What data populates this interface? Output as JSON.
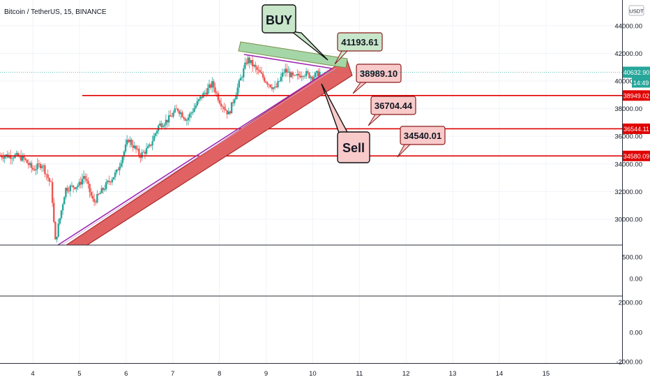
{
  "header": {
    "title": "Bitcoin / TetherUS, 15, BINANCE"
  },
  "currency_badge": "USDT",
  "colors": {
    "up": "#26a69a",
    "down": "#ef5350",
    "grid": "#f0f3fa",
    "support": "#e00000",
    "channel": "#c0393b",
    "purple": "#9c27b0",
    "buy_fill": "#c8e6c9",
    "sell_fill": "#f8caca",
    "price_tag": "#26a69a"
  },
  "chart_data": [
    {
      "type": "candlestick",
      "title": "Bitcoin / TetherUS, 15, BINANCE",
      "x_ticks": [
        "4",
        "5",
        "6",
        "7",
        "8",
        "9",
        "10",
        "11",
        "12",
        "13",
        "14",
        "15"
      ],
      "y_ticks": [
        "30000.00",
        "32000.00",
        "34000.00",
        "36000.00",
        "38000.00",
        "40000.00",
        "42000.00",
        "44000.00"
      ],
      "ylim": [
        28000,
        45600
      ],
      "price_path": [
        [
          3.6,
          34600
        ],
        [
          3.8,
          34400
        ],
        [
          4.0,
          33600
        ],
        [
          4.2,
          34000
        ],
        [
          4.4,
          32400
        ],
        [
          4.48,
          28300
        ],
        [
          4.7,
          32200
        ],
        [
          5.0,
          32500
        ],
        [
          5.1,
          33200
        ],
        [
          5.3,
          31200
        ],
        [
          5.6,
          32600
        ],
        [
          5.8,
          33400
        ],
        [
          6.05,
          35800
        ],
        [
          6.3,
          34600
        ],
        [
          6.5,
          35200
        ],
        [
          6.7,
          36800
        ],
        [
          6.9,
          37200
        ],
        [
          7.1,
          38000
        ],
        [
          7.3,
          37200
        ],
        [
          7.6,
          38800
        ],
        [
          7.85,
          39800
        ],
        [
          8.0,
          38600
        ],
        [
          8.2,
          37600
        ],
        [
          8.4,
          39600
        ],
        [
          8.6,
          41600
        ],
        [
          8.8,
          40800
        ],
        [
          9.0,
          40000
        ],
        [
          9.2,
          39400
        ],
        [
          9.4,
          40800
        ],
        [
          9.6,
          40200
        ],
        [
          9.8,
          40600
        ],
        [
          10.0,
          40300
        ],
        [
          10.15,
          40630
        ]
      ],
      "horizontal_levels": [
        {
          "price": 38949.02,
          "label": "38949.02"
        },
        {
          "price": 36544.11,
          "label": "36544.11"
        },
        {
          "price": 34580.09,
          "label": "34580.09"
        }
      ],
      "last_price": {
        "price": 40632.9,
        "label": "40632.90",
        "countdown": "14:49"
      },
      "callouts": [
        {
          "text": "41193.61",
          "fill": "#c8e6c9"
        },
        {
          "text": "38989.10",
          "fill": "#f8caca"
        },
        {
          "text": "36704.44",
          "fill": "#f8caca"
        },
        {
          "text": "34540.01",
          "fill": "#f8caca"
        }
      ],
      "signals": {
        "buy": "BUY",
        "sell": "Sell"
      }
    },
    {
      "type": "bar",
      "name": "volume",
      "y_ticks": [
        "500.00",
        "0.00"
      ]
    },
    {
      "type": "line",
      "name": "oscillator",
      "y_ticks": [
        "2000.00",
        "0.00",
        "-2000.00"
      ]
    }
  ]
}
